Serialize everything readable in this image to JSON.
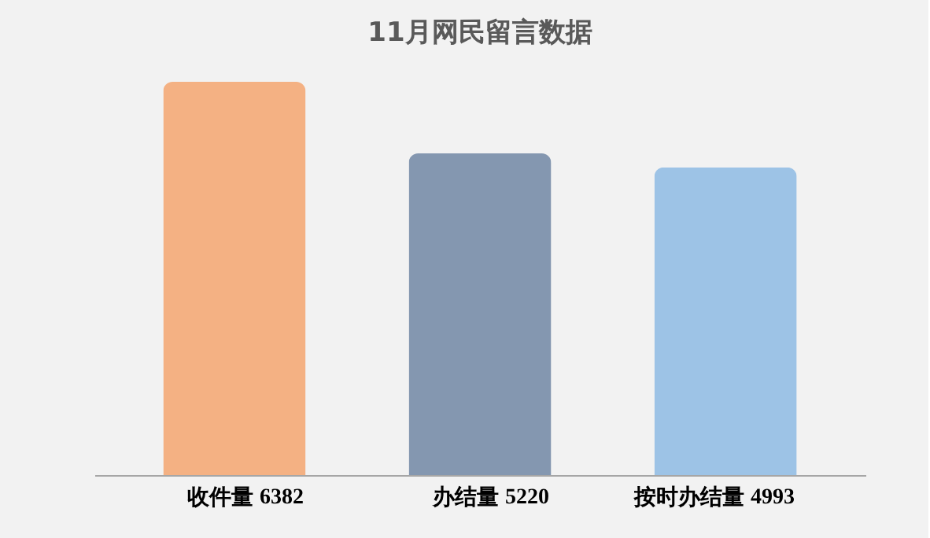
{
  "chart_data": {
    "type": "bar",
    "title": "11月网民留言数据",
    "categories": [
      "收件量",
      "办结量",
      "按时办结量"
    ],
    "values": [
      6382,
      5220,
      4993
    ],
    "colors": [
      "#f4b183",
      "#8497b0",
      "#9dc3e6"
    ],
    "data_labels": true,
    "grid": false,
    "legend": false
  }
}
